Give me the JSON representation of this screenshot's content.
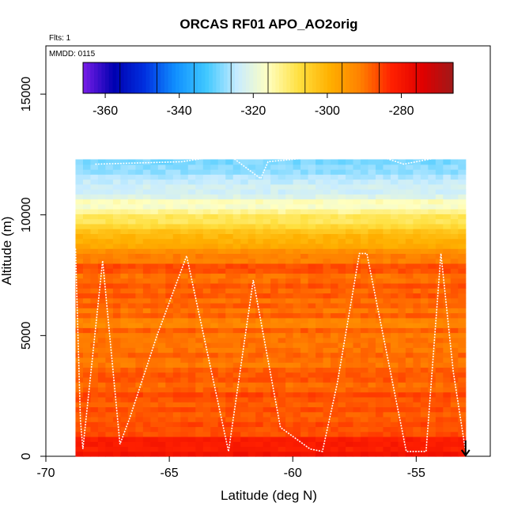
{
  "chart_data": {
    "type": "heatmap",
    "title": "ORCAS RF01 APO_AO2orig",
    "flights_note": "Flts: 1",
    "date_note": "MMDD: 0115",
    "xlabel": "Latitude (deg N)",
    "ylabel": "Altitude (m)",
    "xlim": [
      -70,
      -52
    ],
    "ylim": [
      0,
      17000
    ],
    "x_ticks": [
      -70,
      -65,
      -60,
      -55
    ],
    "x_tick_labels": [
      "-70",
      "-65",
      "-60",
      "-55"
    ],
    "y_ticks": [
      0,
      5000,
      10000,
      15000
    ],
    "y_tick_labels": [
      "0",
      "5000",
      "10000",
      "15000"
    ],
    "colorbar": {
      "range": [
        -366,
        -266
      ],
      "ticks": [
        -360,
        -340,
        -320,
        -300,
        -280
      ],
      "tick_labels": [
        "-360",
        "-340",
        "-320",
        "-300",
        "-280"
      ],
      "colors": [
        "#7a1ee8",
        "#0000b0",
        "#0030e0",
        "#1090ff",
        "#40c8ff",
        "#c8ecff",
        "#ffffc0",
        "#ffe040",
        "#ffb000",
        "#ff8000",
        "#ff2000",
        "#e00000",
        "#a01818"
      ]
    },
    "field_extent": {
      "lat_min": -68.8,
      "lat_max": -53.0,
      "alt_min": 0,
      "alt_max": 12300
    },
    "field_profile": {
      "altitudes": [
        0,
        1000,
        2000,
        3000,
        4000,
        5000,
        6000,
        7000,
        8000,
        9000,
        10000,
        11000,
        12300
      ],
      "values": [
        -278,
        -286,
        -287,
        -289,
        -290,
        -290,
        -290,
        -288,
        -288,
        -300,
        -310,
        -324,
        -330
      ]
    },
    "flight_track": {
      "lat": [
        -68.8,
        -68.7,
        -68.6,
        -68.5,
        -67.7,
        -67.0,
        -66.6,
        -65.5,
        -64.3,
        -62.6,
        -61.6,
        -60.5,
        -59.3,
        -58.8,
        -58.2,
        -57.3,
        -57.0,
        -55.4,
        -54.6,
        -54.0,
        -53.5,
        -53.0
      ],
      "alt": [
        8600,
        5000,
        1500,
        300,
        8100,
        500,
        1600,
        5000,
        8300,
        200,
        7300,
        1200,
        300,
        200,
        3000,
        8400,
        8400,
        200,
        200,
        8400,
        3500,
        200
      ]
    },
    "upper_track": {
      "lat": [
        -68.0,
        -64.5,
        -62.6,
        -61.3,
        -61.0,
        -57.0,
        -55.5,
        -53.0
      ],
      "alt": [
        12100,
        12200,
        12500,
        11500,
        12200,
        12600,
        12100,
        12600
      ]
    }
  }
}
